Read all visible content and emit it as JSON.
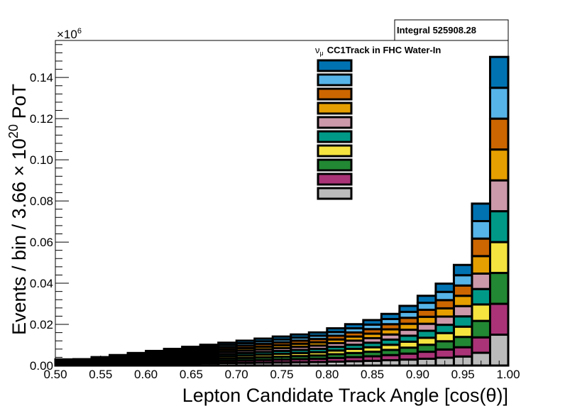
{
  "chart_data": {
    "type": "bar",
    "stacked": true,
    "title": "ν_μ CC1Track in FHC Water-In",
    "title_parts": {
      "nu": "ν",
      "sub": "μ",
      "rest": "CC1Track in FHC Water-In"
    },
    "xlabel": "Lepton Candidate Track Angle [cos(θ)]",
    "ylabel": "Events / bin / 3.66 × 10^20 PoT",
    "ylabel_parts": {
      "a": "Events / bin / 3.66 × 10",
      "exp": "20",
      "b": " PoT"
    },
    "y_multiplier": "×10^6",
    "y_multiplier_parts": {
      "base": "×10",
      "exp": "6"
    },
    "stats": "Integral 525908.28",
    "xlim": [
      0.5,
      1.0
    ],
    "ylim": [
      0,
      0.158
    ],
    "x_ticks": [
      0.5,
      0.55,
      0.6,
      0.65,
      0.7,
      0.75,
      0.8,
      0.85,
      0.9,
      0.95,
      1.0
    ],
    "x_tick_labels": [
      "0.50",
      "0.55",
      "0.60",
      "0.65",
      "0.70",
      "0.75",
      "0.80",
      "0.85",
      "0.90",
      "0.95",
      "1.00"
    ],
    "y_ticks": [
      0,
      0.02,
      0.04,
      0.06,
      0.08,
      0.1,
      0.12,
      0.14
    ],
    "y_tick_labels": [
      "0.00",
      "0.02",
      "0.04",
      "0.06",
      "0.08",
      "0.10",
      "0.12",
      "0.14"
    ],
    "bin_edges": [
      0.5,
      0.52,
      0.54,
      0.56,
      0.58,
      0.6,
      0.62,
      0.64,
      0.66,
      0.68,
      0.7,
      0.72,
      0.74,
      0.76,
      0.78,
      0.8,
      0.82,
      0.84,
      0.86,
      0.88,
      0.9,
      0.92,
      0.94,
      0.96,
      0.98,
      1.0
    ],
    "series": [
      {
        "color": "#bbbbbb",
        "values": [
          0.0003,
          0.0004,
          0.0005,
          0.0006,
          0.0007,
          0.0008,
          0.0009,
          0.001,
          0.0011,
          0.0012,
          0.0013,
          0.0014,
          0.0015,
          0.0016,
          0.0017,
          0.0019,
          0.0021,
          0.0023,
          0.0026,
          0.0029,
          0.0033,
          0.0038,
          0.0044,
          0.0062,
          0.015
        ]
      },
      {
        "color": "#aa3377",
        "values": [
          0.0003,
          0.0003,
          0.0004,
          0.0005,
          0.0006,
          0.0007,
          0.0008,
          0.0009,
          0.001,
          0.0011,
          0.0012,
          0.0013,
          0.0014,
          0.0015,
          0.0016,
          0.0018,
          0.002,
          0.0022,
          0.0025,
          0.0029,
          0.0034,
          0.004,
          0.0045,
          0.0075,
          0.015
        ]
      },
      {
        "color": "#228833",
        "values": [
          0.0003,
          0.0003,
          0.0004,
          0.0005,
          0.0006,
          0.0007,
          0.0008,
          0.0009,
          0.001,
          0.0011,
          0.0012,
          0.0013,
          0.0014,
          0.0015,
          0.0016,
          0.0018,
          0.002,
          0.0022,
          0.0025,
          0.0029,
          0.0034,
          0.004,
          0.005,
          0.008,
          0.015
        ]
      },
      {
        "color": "#f5e33f",
        "values": [
          0.0003,
          0.0003,
          0.0004,
          0.0005,
          0.0006,
          0.0007,
          0.0008,
          0.0009,
          0.001,
          0.0011,
          0.0012,
          0.0013,
          0.0014,
          0.0015,
          0.0016,
          0.0018,
          0.002,
          0.0022,
          0.0025,
          0.0029,
          0.0034,
          0.004,
          0.005,
          0.008,
          0.015
        ]
      },
      {
        "color": "#009988",
        "values": [
          0.0003,
          0.0003,
          0.0004,
          0.0005,
          0.0006,
          0.0007,
          0.0008,
          0.0009,
          0.001,
          0.0011,
          0.0012,
          0.0013,
          0.0014,
          0.0015,
          0.0016,
          0.0018,
          0.002,
          0.0022,
          0.0025,
          0.0029,
          0.0034,
          0.004,
          0.005,
          0.0075,
          0.015
        ]
      },
      {
        "color": "#cc99aa",
        "values": [
          0.0003,
          0.0003,
          0.0004,
          0.0005,
          0.0006,
          0.0007,
          0.0008,
          0.0009,
          0.001,
          0.0011,
          0.0012,
          0.0013,
          0.0014,
          0.0015,
          0.0016,
          0.0018,
          0.002,
          0.0022,
          0.0025,
          0.0029,
          0.0034,
          0.004,
          0.005,
          0.0075,
          0.015
        ]
      },
      {
        "color": "#e69f00",
        "values": [
          0.0003,
          0.0003,
          0.0004,
          0.0005,
          0.0006,
          0.0007,
          0.0008,
          0.0009,
          0.001,
          0.0011,
          0.0012,
          0.0013,
          0.0014,
          0.0015,
          0.0016,
          0.0018,
          0.002,
          0.0022,
          0.0025,
          0.0029,
          0.0034,
          0.004,
          0.005,
          0.0085,
          0.015
        ]
      },
      {
        "color": "#cc6600",
        "values": [
          0.0003,
          0.0003,
          0.0004,
          0.0005,
          0.0006,
          0.0007,
          0.0008,
          0.0009,
          0.001,
          0.0011,
          0.0012,
          0.0013,
          0.0014,
          0.0015,
          0.0016,
          0.0018,
          0.002,
          0.0022,
          0.0025,
          0.0029,
          0.0034,
          0.004,
          0.005,
          0.0085,
          0.015
        ]
      },
      {
        "color": "#56b4e9",
        "values": [
          0.0003,
          0.0003,
          0.0004,
          0.0005,
          0.0006,
          0.0007,
          0.0008,
          0.0009,
          0.001,
          0.0011,
          0.0012,
          0.0013,
          0.0014,
          0.0015,
          0.0016,
          0.0018,
          0.002,
          0.0022,
          0.0025,
          0.0029,
          0.0034,
          0.004,
          0.005,
          0.0085,
          0.015
        ]
      },
      {
        "color": "#0072b2",
        "values": [
          0.0003,
          0.0003,
          0.0004,
          0.0005,
          0.0006,
          0.0007,
          0.0008,
          0.0009,
          0.001,
          0.0011,
          0.0012,
          0.0013,
          0.0014,
          0.0015,
          0.0016,
          0.0018,
          0.002,
          0.0022,
          0.0025,
          0.0029,
          0.0034,
          0.004,
          0.005,
          0.0085,
          0.015
        ]
      }
    ],
    "legend": {
      "placement": "top-center",
      "swatches_top_to_bottom": [
        "#0072b2",
        "#56b4e9",
        "#cc6600",
        "#e69f00",
        "#cc99aa",
        "#009988",
        "#f5e33f",
        "#228833",
        "#aa3377",
        "#bbbbbb"
      ]
    },
    "grid": false
  }
}
